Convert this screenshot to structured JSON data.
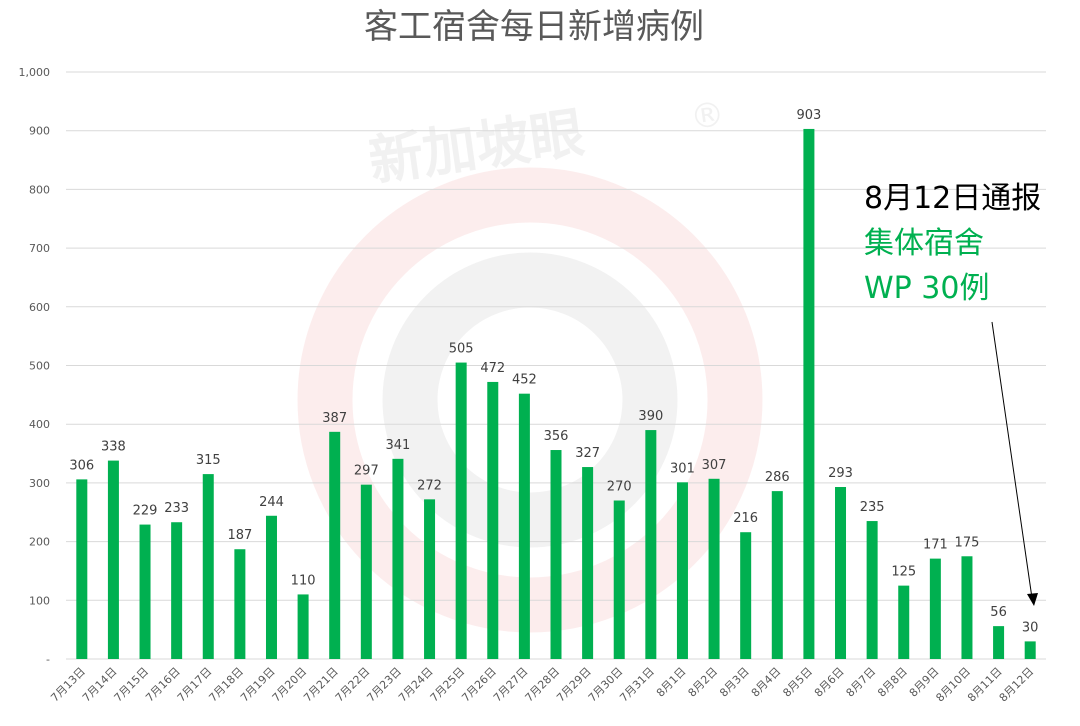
{
  "chart_data": {
    "type": "bar",
    "title": "客工宿舍每日新增病例",
    "categories": [
      "7月13日",
      "7月14日",
      "7月15日",
      "7月16日",
      "7月17日",
      "7月18日",
      "7月19日",
      "7月20日",
      "7月21日",
      "7月22日",
      "7月23日",
      "7月24日",
      "7月25日",
      "7月26日",
      "7月27日",
      "7月28日",
      "7月29日",
      "7月30日",
      "7月31日",
      "8月1日",
      "8月2日",
      "8月3日",
      "8月4日",
      "8月5日",
      "8月6日",
      "8月7日",
      "8月8日",
      "8月9日",
      "8月10日",
      "8月11日",
      "8月12日"
    ],
    "values": [
      306,
      338,
      229,
      233,
      315,
      187,
      244,
      110,
      387,
      297,
      341,
      272,
      505,
      472,
      452,
      356,
      327,
      270,
      390,
      301,
      307,
      216,
      286,
      903,
      293,
      235,
      125,
      171,
      175,
      56,
      30
    ],
    "ylim": [
      0,
      1000
    ],
    "yticks": [
      "-",
      "100",
      "200",
      "300",
      "400",
      "500",
      "600",
      "700",
      "800",
      "900",
      "1,000"
    ],
    "grid": true,
    "bar_color": "#00b050",
    "annotation": {
      "line1": "8月12日通报",
      "line2": "集体宿舍",
      "line3": "WP 30例",
      "line1_color": "#000000",
      "line2_color": "#00b050"
    }
  },
  "watermark": {
    "text": "新加坡眼",
    "mark": "®"
  }
}
